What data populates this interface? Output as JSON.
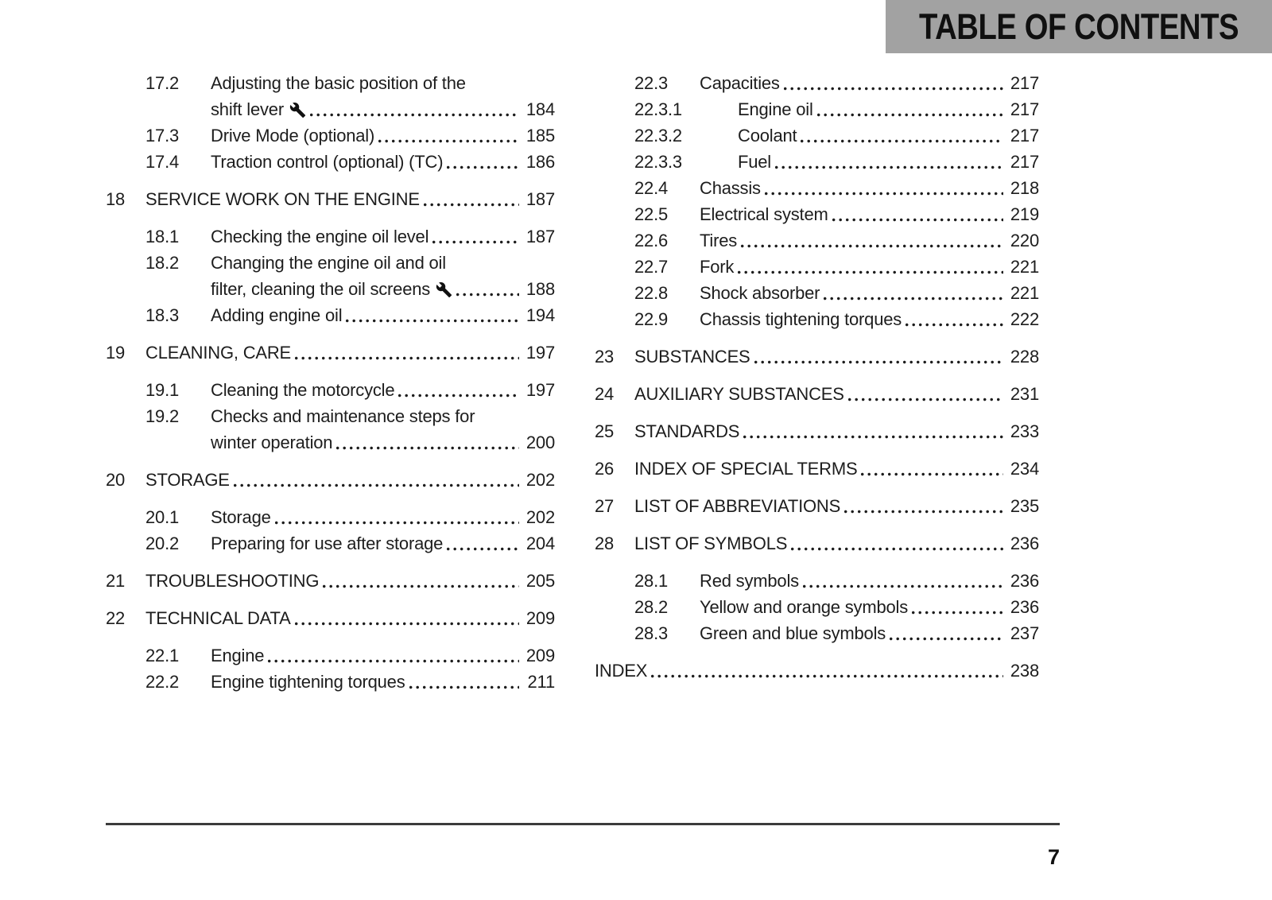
{
  "header": {
    "title": "TABLE OF CONTENTS"
  },
  "page_number": "7",
  "colors": {
    "header_bar": "#a2a2a2",
    "text": "#1d1d1d",
    "rule": "#3c3c3c"
  },
  "icons": {
    "wrench": "wrench-icon"
  },
  "columns": {
    "left": [
      {
        "num": "17.2",
        "level": 2,
        "lines": [
          "Adjusting the basic position of the",
          "shift lever"
        ],
        "icon": "wrench",
        "page": "184"
      },
      {
        "num": "17.3",
        "level": 2,
        "lines": [
          "Drive Mode (optional)"
        ],
        "page": "185"
      },
      {
        "num": "17.4",
        "level": 2,
        "lines": [
          "Traction control (optional) (TC)"
        ],
        "page": "186"
      },
      {
        "num": "18",
        "level": 1,
        "lines": [
          "SERVICE WORK ON THE ENGINE"
        ],
        "page": "187"
      },
      {
        "num": "18.1",
        "level": 2,
        "lines": [
          "Checking the engine oil level"
        ],
        "page": "187"
      },
      {
        "num": "18.2",
        "level": 2,
        "lines": [
          "Changing the engine oil and oil",
          "filter, cleaning the oil screens"
        ],
        "icon": "wrench",
        "page": "188"
      },
      {
        "num": "18.3",
        "level": 2,
        "lines": [
          "Adding engine oil"
        ],
        "page": "194"
      },
      {
        "num": "19",
        "level": 1,
        "lines": [
          "CLEANING, CARE"
        ],
        "page": "197"
      },
      {
        "num": "19.1",
        "level": 2,
        "lines": [
          "Cleaning the motorcycle"
        ],
        "page": "197"
      },
      {
        "num": "19.2",
        "level": 2,
        "lines": [
          "Checks and maintenance steps for",
          "winter operation"
        ],
        "page": "200"
      },
      {
        "num": "20",
        "level": 1,
        "lines": [
          "STORAGE"
        ],
        "page": "202"
      },
      {
        "num": "20.1",
        "level": 2,
        "lines": [
          "Storage"
        ],
        "page": "202"
      },
      {
        "num": "20.2",
        "level": 2,
        "lines": [
          "Preparing for use after storage"
        ],
        "page": "204"
      },
      {
        "num": "21",
        "level": 1,
        "lines": [
          "TROUBLESHOOTING"
        ],
        "page": "205"
      },
      {
        "num": "22",
        "level": 1,
        "lines": [
          "TECHNICAL DATA"
        ],
        "page": "209"
      },
      {
        "num": "22.1",
        "level": 2,
        "lines": [
          "Engine"
        ],
        "page": "209"
      },
      {
        "num": "22.2",
        "level": 2,
        "lines": [
          "Engine tightening torques"
        ],
        "page": "211"
      }
    ],
    "right": [
      {
        "num": "22.3",
        "level": 2,
        "lines": [
          "Capacities"
        ],
        "page": "217"
      },
      {
        "num": "22.3.1",
        "level": 3,
        "lines": [
          "Engine oil"
        ],
        "page": "217"
      },
      {
        "num": "22.3.2",
        "level": 3,
        "lines": [
          "Coolant"
        ],
        "page": "217"
      },
      {
        "num": "22.3.3",
        "level": 3,
        "lines": [
          "Fuel"
        ],
        "page": "217"
      },
      {
        "num": "22.4",
        "level": 2,
        "lines": [
          "Chassis"
        ],
        "page": "218"
      },
      {
        "num": "22.5",
        "level": 2,
        "lines": [
          "Electrical system"
        ],
        "page": "219"
      },
      {
        "num": "22.6",
        "level": 2,
        "lines": [
          "Tires"
        ],
        "page": "220"
      },
      {
        "num": "22.7",
        "level": 2,
        "lines": [
          "Fork"
        ],
        "page": "221"
      },
      {
        "num": "22.8",
        "level": 2,
        "lines": [
          "Shock absorber"
        ],
        "page": "221"
      },
      {
        "num": "22.9",
        "level": 2,
        "lines": [
          "Chassis tightening torques"
        ],
        "page": "222"
      },
      {
        "num": "23",
        "level": 1,
        "lines": [
          "SUBSTANCES"
        ],
        "page": "228"
      },
      {
        "num": "24",
        "level": 1,
        "lines": [
          "AUXILIARY SUBSTANCES"
        ],
        "page": "231"
      },
      {
        "num": "25",
        "level": 1,
        "lines": [
          "STANDARDS"
        ],
        "page": "233"
      },
      {
        "num": "26",
        "level": 1,
        "lines": [
          "INDEX OF SPECIAL TERMS"
        ],
        "page": "234"
      },
      {
        "num": "27",
        "level": 1,
        "lines": [
          "LIST OF ABBREVIATIONS"
        ],
        "page": "235"
      },
      {
        "num": "28",
        "level": 1,
        "lines": [
          "LIST OF SYMBOLS"
        ],
        "page": "236"
      },
      {
        "num": "28.1",
        "level": 2,
        "lines": [
          "Red symbols"
        ],
        "page": "236"
      },
      {
        "num": "28.2",
        "level": 2,
        "lines": [
          "Yellow and orange symbols"
        ],
        "page": "236"
      },
      {
        "num": "28.3",
        "level": 2,
        "lines": [
          "Green and blue symbols"
        ],
        "page": "237"
      },
      {
        "num": "",
        "level": 1,
        "lines": [
          "INDEX"
        ],
        "page": "238"
      }
    ]
  }
}
